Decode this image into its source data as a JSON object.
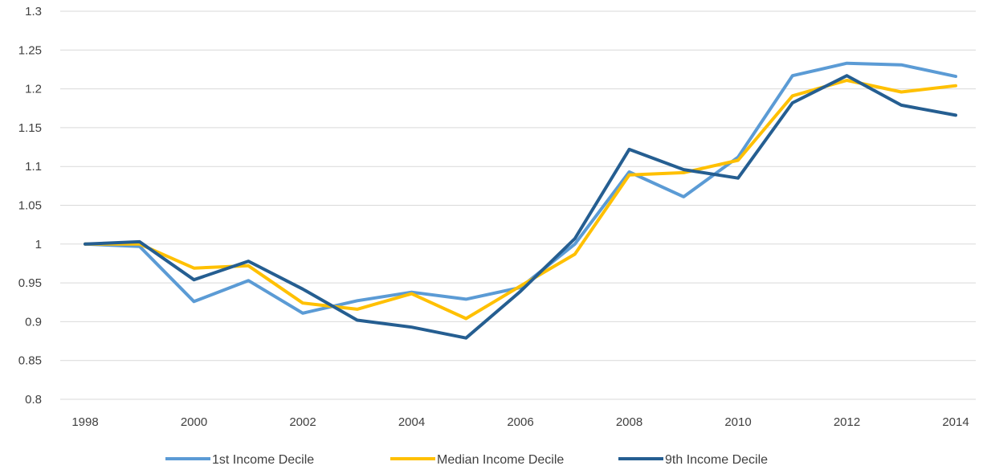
{
  "chart_data": {
    "type": "line",
    "x": [
      1998,
      1999,
      2000,
      2001,
      2002,
      2003,
      2004,
      2005,
      2006,
      2007,
      2008,
      2009,
      2010,
      2011,
      2012,
      2013,
      2014
    ],
    "x_tick_labels": [
      "1998",
      "2000",
      "2002",
      "2004",
      "2006",
      "2008",
      "2010",
      "2012",
      "2014"
    ],
    "y_tick_labels": [
      "0.8",
      "0.85",
      "0.9",
      "0.95",
      "1",
      "1.05",
      "1.1",
      "1.15",
      "1.2",
      "1.25",
      "1.3"
    ],
    "ylim": [
      0.8,
      1.3
    ],
    "xlim": [
      1998,
      2014
    ],
    "grid": "horizontal",
    "legend_position": "bottom",
    "series": [
      {
        "name": "1st Income Decile",
        "color": "#5b9bd5",
        "values": [
          1.0,
          0.997,
          0.926,
          0.953,
          0.911,
          0.927,
          0.938,
          0.929,
          0.944,
          1.0,
          1.093,
          1.061,
          1.112,
          1.217,
          1.233,
          1.231,
          1.216
        ]
      },
      {
        "name": "Median Income Decile",
        "color": "#ffc000",
        "values": [
          1.0,
          1.0,
          0.969,
          0.972,
          0.924,
          0.916,
          0.936,
          0.904,
          0.946,
          0.987,
          1.089,
          1.092,
          1.108,
          1.191,
          1.211,
          1.196,
          1.204
        ]
      },
      {
        "name": "9th Income Decile",
        "color": "#255e91",
        "values": [
          1.0,
          1.003,
          0.954,
          0.978,
          0.942,
          0.902,
          0.893,
          0.879,
          0.939,
          1.007,
          1.122,
          1.096,
          1.085,
          1.182,
          1.217,
          1.179,
          1.166
        ]
      }
    ]
  }
}
